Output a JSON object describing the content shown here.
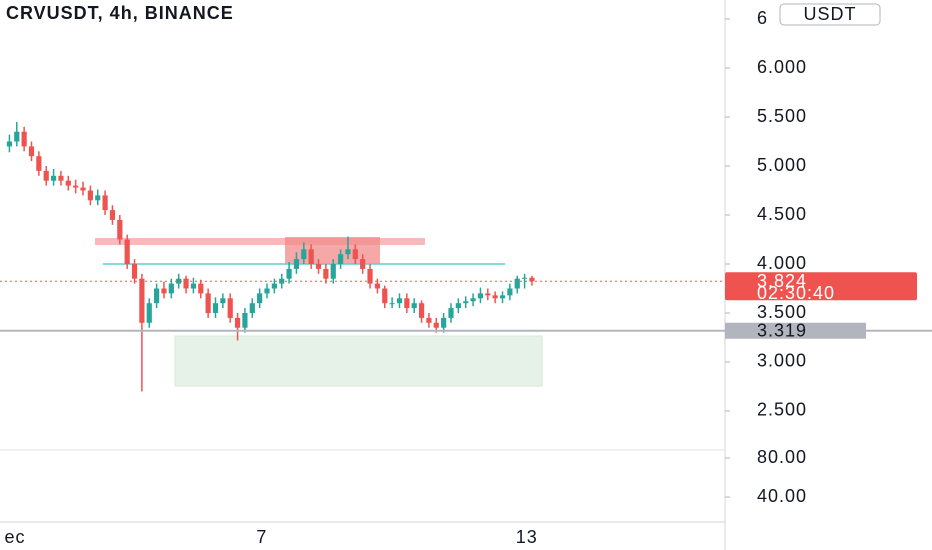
{
  "chart_data": {
    "type": "candlestick",
    "title": "CRVUSDT, 4h, BINANCE",
    "currency": "USDT",
    "up_color": "#26a69a",
    "down_color": "#ef5350",
    "open": [
      5.2,
      5.25,
      5.35,
      5.2,
      5.1,
      4.95,
      4.85,
      4.9,
      4.85,
      4.8,
      4.78,
      4.75,
      4.65,
      4.7,
      4.55,
      4.45,
      4.25,
      4.0,
      3.85,
      3.4,
      3.6,
      3.75,
      3.7,
      3.8,
      3.85,
      3.75,
      3.8,
      3.7,
      3.5,
      3.6,
      3.65,
      3.45,
      3.35,
      3.5,
      3.6,
      3.7,
      3.75,
      3.8,
      3.85,
      3.95,
      4.05,
      4.15,
      4.0,
      3.95,
      3.85,
      4.0,
      4.1,
      4.15,
      4.05,
      3.95,
      3.8,
      3.75,
      3.6,
      3.6,
      3.65,
      3.55,
      3.6,
      3.45,
      3.4,
      3.35,
      3.45,
      3.55,
      3.6,
      3.62,
      3.65,
      3.7,
      3.68,
      3.65,
      3.68,
      3.75,
      3.85,
      3.86
    ],
    "high": [
      5.32,
      5.45,
      5.4,
      5.25,
      5.15,
      5.0,
      4.97,
      4.95,
      4.9,
      4.86,
      4.84,
      4.8,
      4.76,
      4.75,
      4.6,
      4.5,
      4.3,
      4.05,
      3.9,
      3.65,
      3.8,
      3.82,
      3.85,
      3.9,
      3.88,
      3.86,
      3.84,
      3.75,
      3.66,
      3.7,
      3.7,
      3.5,
      3.55,
      3.65,
      3.75,
      3.8,
      3.85,
      3.9,
      4.02,
      4.12,
      4.22,
      4.2,
      4.05,
      4.0,
      4.05,
      4.15,
      4.28,
      4.2,
      4.1,
      4.0,
      3.85,
      3.78,
      3.66,
      3.7,
      3.7,
      3.65,
      3.63,
      3.5,
      3.45,
      3.5,
      3.6,
      3.65,
      3.67,
      3.7,
      3.76,
      3.75,
      3.72,
      3.72,
      3.8,
      3.88,
      3.9,
      3.88
    ],
    "low": [
      5.14,
      5.2,
      5.15,
      5.05,
      4.9,
      4.8,
      4.8,
      4.8,
      4.75,
      4.72,
      4.7,
      4.6,
      4.6,
      4.5,
      4.4,
      4.2,
      3.95,
      3.8,
      2.7,
      3.35,
      3.55,
      3.65,
      3.65,
      3.75,
      3.7,
      3.7,
      3.65,
      3.45,
      3.45,
      3.55,
      3.4,
      3.22,
      3.3,
      3.45,
      3.55,
      3.65,
      3.7,
      3.75,
      3.8,
      3.9,
      4.0,
      3.95,
      3.9,
      3.8,
      3.8,
      3.95,
      4.05,
      4.0,
      3.9,
      3.75,
      3.7,
      3.55,
      3.55,
      3.55,
      3.5,
      3.5,
      3.4,
      3.35,
      3.3,
      3.3,
      3.4,
      3.5,
      3.55,
      3.57,
      3.6,
      3.63,
      3.6,
      3.6,
      3.63,
      3.7,
      3.75,
      3.78
    ],
    "close": [
      5.25,
      5.35,
      5.2,
      5.1,
      4.95,
      4.85,
      4.9,
      4.85,
      4.8,
      4.78,
      4.75,
      4.65,
      4.7,
      4.55,
      4.45,
      4.25,
      4.0,
      3.85,
      3.4,
      3.6,
      3.75,
      3.7,
      3.8,
      3.85,
      3.75,
      3.8,
      3.7,
      3.5,
      3.6,
      3.65,
      3.45,
      3.35,
      3.5,
      3.6,
      3.7,
      3.75,
      3.8,
      3.85,
      3.95,
      4.05,
      4.15,
      4.0,
      3.95,
      3.85,
      4.0,
      4.1,
      4.15,
      4.05,
      3.95,
      3.8,
      3.75,
      3.6,
      3.6,
      3.65,
      3.55,
      3.6,
      3.45,
      3.4,
      3.35,
      3.45,
      3.55,
      3.6,
      3.62,
      3.65,
      3.7,
      3.68,
      3.65,
      3.68,
      3.75,
      3.85,
      3.86,
      3.824
    ],
    "last_price": {
      "value": 3.824,
      "label": "3.824",
      "countdown": "02:30:40",
      "color": "#ef5350"
    },
    "level": {
      "value": 3.319,
      "label": "3.319",
      "color": "#b2b5be"
    },
    "xlim": [
      -1.28,
      97.23
    ],
    "xticks": [
      {
        "value": 0.76,
        "label": "ec"
      },
      {
        "value": 34.3,
        "label": "7"
      },
      {
        "value": 70.3,
        "label": "13"
      }
    ],
    "ylim": [
      2.102,
      6.694
    ],
    "yticks": [
      {
        "value": 2.5,
        "label": "2.500"
      },
      {
        "value": 3,
        "label": "3.000"
      },
      {
        "value": 3.5,
        "label": "3.500"
      },
      {
        "value": 4,
        "label": "4.000"
      },
      {
        "value": 4.5,
        "label": "4.500"
      },
      {
        "value": 5,
        "label": "5.000"
      },
      {
        "value": 5.5,
        "label": "5.500"
      },
      {
        "value": 6,
        "label": "6.000"
      },
      {
        "value": 6.5,
        "label": "6"
      }
    ],
    "indicator_pane": {
      "ylim": [
        14.4,
        88.2
      ],
      "yticks": [
        {
          "value": 40,
          "label": "40.00"
        },
        {
          "value": 80,
          "label": "80.00"
        }
      ]
    }
  }
}
